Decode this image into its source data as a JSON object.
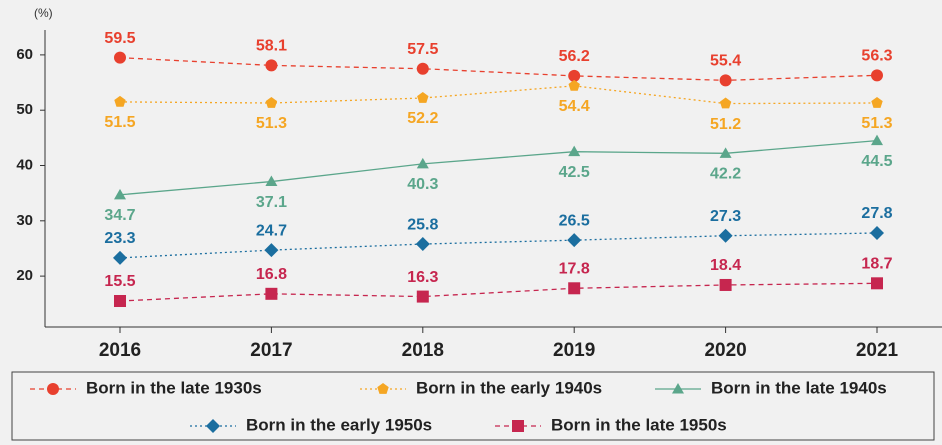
{
  "chart_data": {
    "type": "line",
    "y_unit_label": "(%)",
    "categories": [
      "2016",
      "2017",
      "2018",
      "2019",
      "2020",
      "2021"
    ],
    "ylim": [
      10.8,
      64.5
    ],
    "yticks": [
      20,
      30,
      40,
      50,
      60
    ],
    "grid": false,
    "series": [
      {
        "name": "Born in the late 1930s",
        "color": "#e8402e",
        "marker": "circle",
        "dash": "dashed",
        "label_position": "above",
        "values": [
          59.5,
          58.1,
          57.5,
          56.2,
          55.4,
          56.3
        ]
      },
      {
        "name": "Born in the early 1940s",
        "color": "#f5a623",
        "marker": "pentagon",
        "dash": "dotted",
        "label_position": "below",
        "values": [
          51.5,
          51.3,
          52.2,
          54.4,
          51.2,
          51.3
        ]
      },
      {
        "name": "Born in the late 1940s",
        "color": "#5ba68b",
        "marker": "triangle",
        "dash": "solid",
        "label_position": "below",
        "values": [
          34.7,
          37.1,
          40.3,
          42.5,
          42.2,
          44.5
        ]
      },
      {
        "name": "Born in the early 1950s",
        "color": "#1b6e9f",
        "marker": "diamond",
        "dash": "dotted",
        "label_position": "above",
        "values": [
          23.3,
          24.7,
          25.8,
          26.5,
          27.3,
          27.8
        ]
      },
      {
        "name": "Born in the late 1950s",
        "color": "#c6264f",
        "marker": "square",
        "dash": "dashed",
        "label_position": "above",
        "values": [
          15.5,
          16.8,
          16.3,
          17.8,
          18.4,
          18.7
        ]
      }
    ]
  }
}
